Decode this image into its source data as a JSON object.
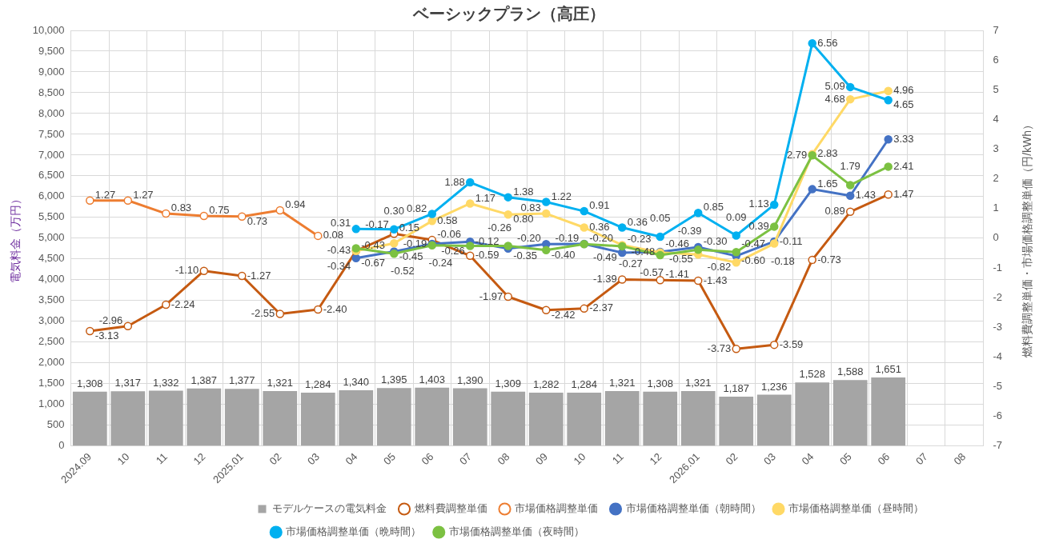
{
  "chart_data": {
    "type": "bar",
    "title": "ベーシックプラン（高圧）",
    "ylabel": "電気料金（万円）",
    "y2label": "燃料費調整単価・市場価格調整単価（円/kWh）",
    "categories": [
      "2024.09",
      "10",
      "11",
      "12",
      "2025.01",
      "02",
      "03",
      "04",
      "05",
      "06",
      "07",
      "08",
      "09",
      "10",
      "11",
      "12",
      "2026.01",
      "02",
      "03",
      "04",
      "05",
      "06",
      "07",
      "08"
    ],
    "series": [
      {
        "name": "モデルケースの電気料金",
        "color": "#a5a5a5",
        "values": [
          1308,
          1317,
          1332,
          1387,
          1377,
          1321,
          1284,
          1340,
          1395,
          1403,
          1390,
          1309,
          1282,
          1284,
          1321,
          1308,
          1321,
          1187,
          1236,
          1528,
          1588,
          1651,
          null,
          null
        ],
        "value_labels": [
          "1,308",
          "1,317",
          "1,332",
          "1,387",
          "1,377",
          "1,321",
          "1,284",
          "1,340",
          "1,395",
          "1,403",
          "1,390",
          "1,309",
          "1,282",
          "1,284",
          "1,321",
          "1,308",
          "1,321",
          "1,187",
          "1,236",
          "1,528",
          "1,588",
          "1,651",
          null,
          null
        ]
      },
      {
        "name": "燃料費調整単価",
        "type": "line",
        "axis": "y2",
        "color": "#c55a11",
        "values": [
          -3.13,
          -2.96,
          -2.24,
          -1.1,
          -1.27,
          -2.55,
          -2.4,
          -0.43,
          0.15,
          -0.06,
          -0.59,
          -1.97,
          -2.42,
          -2.37,
          -1.39,
          -1.41,
          -1.43,
          -3.73,
          -3.59,
          -0.73,
          0.89,
          1.47,
          null,
          null
        ],
        "value_labels": [
          "-3.13",
          "-2.96",
          "-2.24",
          "-1.10",
          "-1.27",
          "-2.55",
          "-2.40",
          "-0.43",
          "0.15",
          "-0.06",
          "-0.59",
          "-1.97",
          "-2.42",
          "-2.37",
          "-1.39",
          "-1.41",
          "-1.43",
          "-3.73",
          "-3.59",
          "-0.73",
          "0.89",
          "1.47",
          null,
          null
        ]
      },
      {
        "name": "市場価格調整単価",
        "type": "line",
        "axis": "y2",
        "color": "#ed7d31",
        "values": [
          1.27,
          1.27,
          0.83,
          0.75,
          0.73,
          0.94,
          0.08,
          null,
          null,
          null,
          null,
          null,
          null,
          null,
          null,
          null,
          null,
          null,
          null,
          null,
          null,
          null,
          null,
          null
        ],
        "value_labels": [
          "1.27",
          "1.27",
          "0.83",
          "0.75",
          "0.73",
          "0.94",
          "0.08",
          null,
          null,
          null,
          null,
          null,
          null,
          null,
          null,
          null,
          null,
          null,
          null,
          null,
          null,
          null,
          null,
          null
        ]
      },
      {
        "name": "市場価格調整単価（朝時間）",
        "type": "line",
        "axis": "y2",
        "color": "#4472c4",
        "values": [
          null,
          null,
          null,
          null,
          null,
          null,
          null,
          -0.67,
          -0.45,
          -0.19,
          -0.12,
          -0.35,
          -0.2,
          -0.19,
          -0.49,
          -0.46,
          -0.3,
          -0.6,
          -0.11,
          1.65,
          1.43,
          3.33,
          null,
          null
        ],
        "value_labels": [
          null,
          null,
          null,
          null,
          null,
          null,
          null,
          "-0.67",
          "-0.45",
          "-0.19",
          "-0.12",
          "-0.35",
          "-0.20",
          "-0.19",
          "-0.49",
          "-0.46",
          "-0.30",
          "-0.60",
          "-0.11",
          "1.65",
          "1.43",
          "3.33",
          null,
          null
        ]
      },
      {
        "name": "市場価格調整単価（昼時間）",
        "type": "line",
        "axis": "y2",
        "color": "#ffd966",
        "values": [
          null,
          null,
          null,
          null,
          null,
          null,
          null,
          -0.43,
          -0.17,
          0.58,
          1.17,
          0.8,
          0.83,
          0.36,
          -0.23,
          -0.48,
          -0.55,
          -0.82,
          -0.18,
          2.83,
          4.68,
          4.96,
          null,
          null
        ],
        "value_labels": [
          null,
          null,
          null,
          null,
          null,
          null,
          null,
          "-0.43",
          "-0.17",
          "0.58",
          "1.17",
          "0.80",
          "0.83",
          "0.36",
          "-0.23",
          "-0.48",
          "-0.55",
          "-0.82",
          "-0.18",
          "2.83",
          "4.68",
          "4.96",
          null,
          null
        ]
      },
      {
        "name": "市場価格調整単価（晩時間）",
        "type": "line",
        "axis": "y2",
        "color": "#00b0f0",
        "values": [
          null,
          null,
          null,
          null,
          null,
          null,
          null,
          0.31,
          0.3,
          0.82,
          1.88,
          1.38,
          1.22,
          0.91,
          0.36,
          0.05,
          0.85,
          0.09,
          1.13,
          6.56,
          5.09,
          4.65,
          null,
          null
        ],
        "value_labels": [
          null,
          null,
          null,
          null,
          null,
          null,
          null,
          "0.31",
          "0.30",
          "0.82",
          "1.88",
          "1.38",
          "1.22",
          "0.91",
          "0.36",
          "0.05",
          "0.85",
          "0.09",
          "1.13",
          "6.56",
          "5.09",
          "4.65",
          null,
          null
        ]
      },
      {
        "name": "市場価格調整単価（夜時間）",
        "type": "line",
        "axis": "y2",
        "color": "#7cc142",
        "values": [
          null,
          null,
          null,
          null,
          null,
          null,
          null,
          -0.34,
          -0.52,
          -0.24,
          -0.26,
          -0.26,
          -0.4,
          -0.2,
          -0.27,
          -0.57,
          -0.39,
          -0.47,
          0.39,
          2.79,
          1.79,
          2.41,
          null,
          null
        ],
        "value_labels": [
          null,
          null,
          null,
          null,
          null,
          null,
          null,
          "-0.34",
          "-0.52",
          "-0.24",
          "-0.26",
          "-0.26",
          "-0.40",
          "-0.20",
          "-0.27",
          "-0.57",
          "-0.39",
          "-0.47",
          "0.39",
          "2.79",
          "1.79",
          "2.41",
          null,
          null
        ]
      }
    ],
    "ylim": [
      0,
      10000
    ],
    "yticks": [
      0,
      500,
      {
        "value": 1000,
        "label": "1,000"
      },
      {
        "value": 1500,
        "label": "1,500"
      },
      {
        "value": 2000,
        "label": "2,000"
      },
      {
        "value": 2500,
        "label": "2,500"
      },
      {
        "value": 3000,
        "label": "3,000"
      },
      {
        "value": 3500,
        "label": "3,500"
      },
      {
        "value": 4000,
        "label": "4,000"
      },
      {
        "value": 4500,
        "label": "4,500"
      },
      {
        "value": 5000,
        "label": "5,000"
      },
      {
        "value": 5500,
        "label": "5,500"
      },
      {
        "value": 6000,
        "label": "6,000"
      },
      {
        "value": 6500,
        "label": "6,500"
      },
      {
        "value": 7000,
        "label": "7,000"
      },
      {
        "value": 7500,
        "label": "7,500"
      },
      {
        "value": 8000,
        "label": "8,000"
      },
      {
        "value": 8500,
        "label": "8,500"
      },
      {
        "value": 9000,
        "label": "9,000"
      },
      {
        "value": 9500,
        "label": "9,500"
      },
      {
        "value": 10000,
        "label": "10,000"
      }
    ],
    "y2lim": [
      -7,
      7
    ],
    "y2ticks": [
      -7,
      -6,
      -5,
      -4,
      -3,
      -2,
      -1,
      0,
      1,
      2,
      3,
      4,
      5,
      6,
      7
    ],
    "grid": true,
    "legend": "bottom",
    "marker": "circle"
  }
}
